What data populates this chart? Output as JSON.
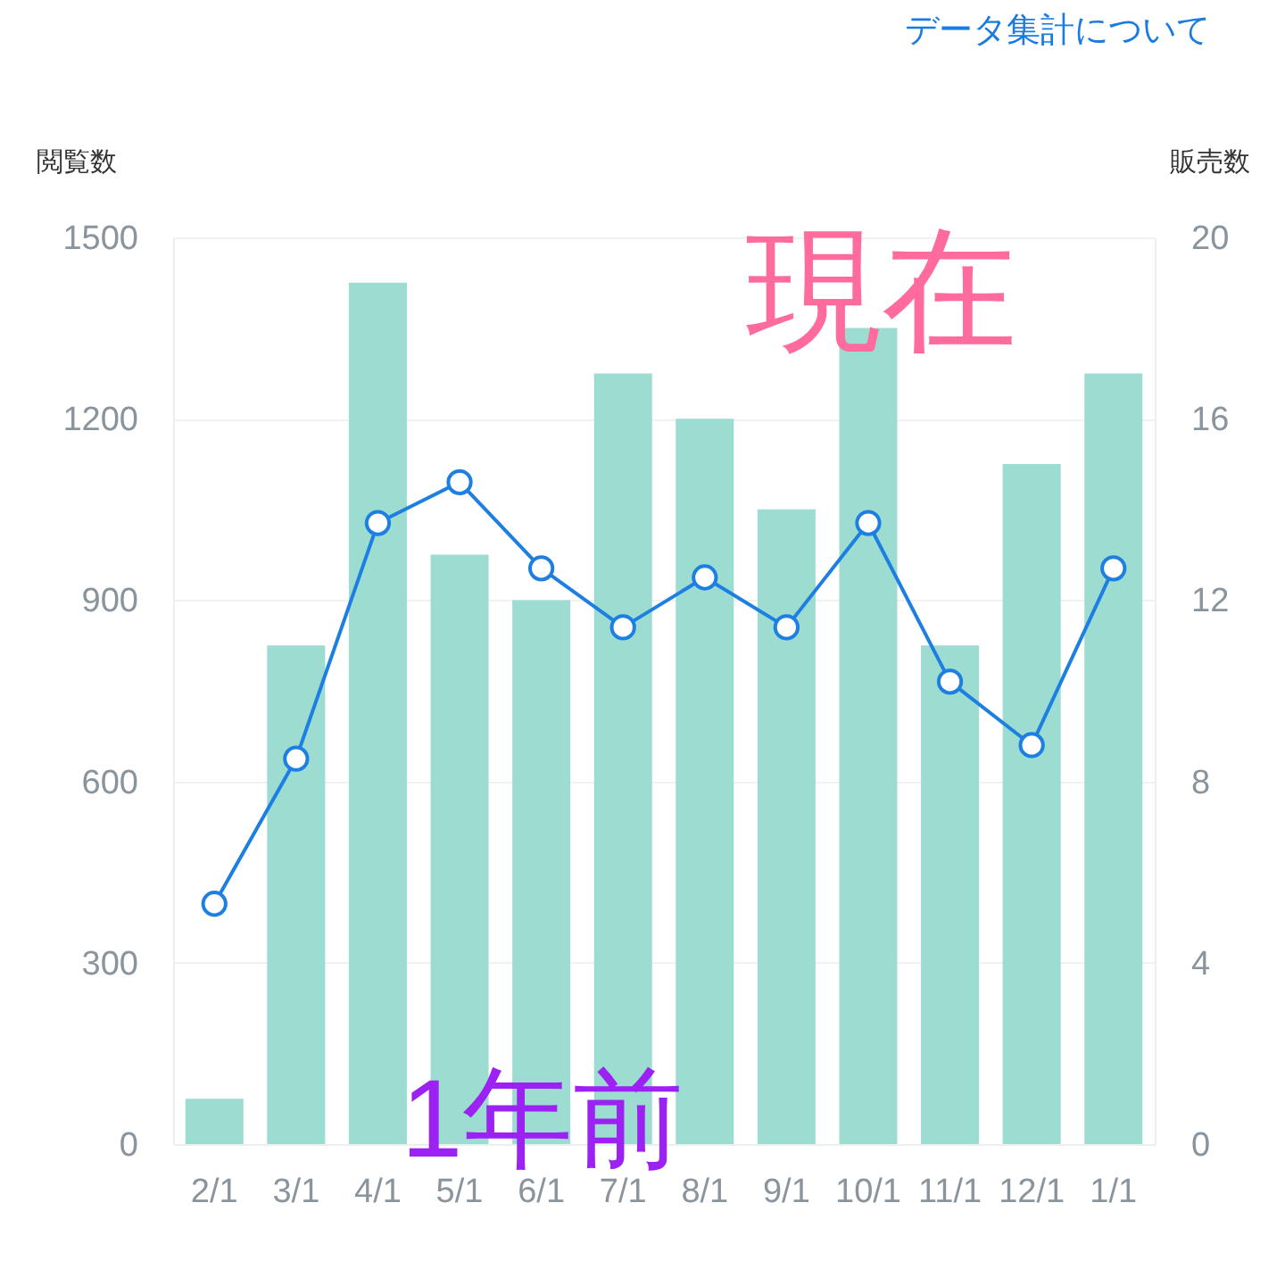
{
  "chart_data": {
    "type": "bar",
    "categories": [
      "2/1",
      "3/1",
      "4/1",
      "5/1",
      "6/1",
      "7/1",
      "8/1",
      "9/1",
      "10/1",
      "11/1",
      "12/1",
      "1/1"
    ],
    "series": [
      {
        "color": "#9ddcd1",
        "values": [
          75,
          825,
          1425,
          975,
          900,
          1275,
          1200,
          1050,
          1350,
          825,
          1125,
          1275
        ]
      },
      {
        "type": "line",
        "axis": "y2",
        "color": "#1e7fe3",
        "values": [
          5.3,
          8.5,
          13.7,
          14.6,
          12.7,
          11.4,
          12.5,
          11.4,
          13.7,
          10.2,
          8.8,
          12.7
        ]
      }
    ],
    "ylabel": "閲覧数",
    "y2label": "販売数",
    "ylim": [
      0,
      1500
    ],
    "yticks": [
      0,
      300,
      600,
      900,
      1200,
      1500
    ],
    "y2lim": [
      0,
      20
    ],
    "y2ticks": [
      0,
      4,
      8,
      12,
      16,
      20
    ],
    "grid": "y",
    "marker": "circle",
    "annotations": [
      "データ集計について",
      "現在",
      "1年前"
    ]
  }
}
